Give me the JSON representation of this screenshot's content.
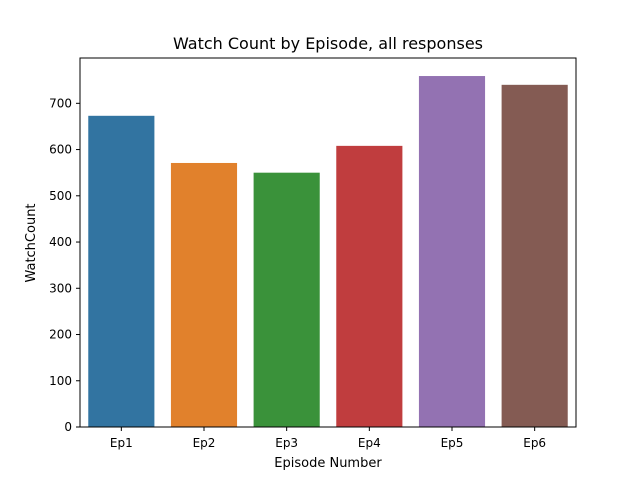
{
  "chart_data": {
    "type": "bar",
    "title": "Watch Count by Episode, all responses",
    "xlabel": "Episode Number",
    "ylabel": "WatchCount",
    "categories": [
      "Ep1",
      "Ep2",
      "Ep3",
      "Ep4",
      "Ep5",
      "Ep6"
    ],
    "values": [
      673,
      571,
      550,
      608,
      759,
      740
    ],
    "colors": [
      "#3274a1",
      "#e1812c",
      "#3a923a",
      "#c03d3e",
      "#9372b2",
      "#845b53"
    ],
    "ylim": [
      0,
      798
    ],
    "yticks": [
      0,
      100,
      200,
      300,
      400,
      500,
      600,
      700
    ],
    "grid": false,
    "legend": "none"
  }
}
